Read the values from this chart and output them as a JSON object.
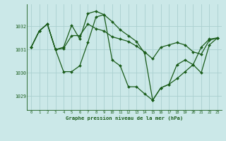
{
  "title": "Graphe pression niveau de la mer (hPa)",
  "bg_color": "#cbe8e8",
  "grid_color": "#aad0d0",
  "line_color": "#1a5c1a",
  "xlim": [
    -0.5,
    23.5
  ],
  "ylim": [
    1028.4,
    1032.95
  ],
  "yticks": [
    1029,
    1030,
    1031,
    1032
  ],
  "xticks": [
    0,
    1,
    2,
    3,
    4,
    5,
    6,
    7,
    8,
    9,
    10,
    11,
    12,
    13,
    14,
    15,
    16,
    17,
    18,
    19,
    20,
    21,
    22,
    23
  ],
  "s1": [
    1031.1,
    1031.8,
    1032.1,
    1031.0,
    1031.1,
    1032.05,
    1031.45,
    1032.55,
    1032.65,
    1032.5,
    1032.2,
    1031.85,
    1031.6,
    1031.35,
    1030.85,
    1028.82,
    1029.35,
    1029.5,
    1029.75,
    1030.05,
    1030.35,
    1031.1,
    1031.45,
    1031.5
  ],
  "s2": [
    1031.1,
    1031.8,
    1032.1,
    1031.0,
    1031.05,
    1031.6,
    1031.6,
    1032.1,
    1031.9,
    1031.8,
    1031.55,
    1031.45,
    1031.35,
    1031.15,
    1030.9,
    1030.6,
    1031.1,
    1031.2,
    1031.3,
    1031.2,
    1030.9,
    1030.8,
    1031.4,
    1031.5
  ],
  "s3": [
    1031.1,
    1031.8,
    1032.1,
    1031.0,
    1030.05,
    1030.05,
    1030.3,
    1031.3,
    1032.4,
    1032.5,
    1030.55,
    1030.3,
    1029.4,
    1029.4,
    1029.1,
    1028.82,
    1029.35,
    1029.5,
    1030.35,
    1030.55,
    1030.35,
    1030.0,
    1031.2,
    1031.5
  ]
}
